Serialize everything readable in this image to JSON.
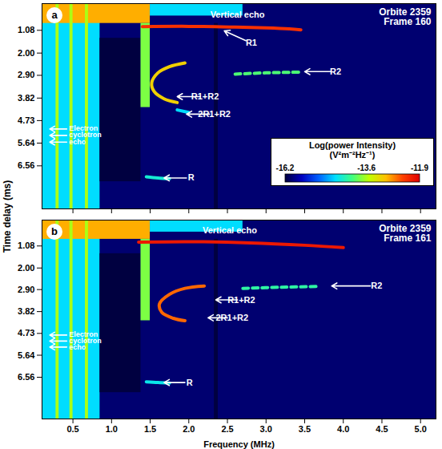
{
  "chart_data": {
    "type": "heatmap",
    "xlabel": "Frequency (MHz)",
    "ylabel": "Time delay (ms)",
    "xlim": [
      0.1,
      5.2
    ],
    "xticks": [
      0.5,
      {
        "value": 1,
        "label": "1.0"
      },
      1.5,
      {
        "value": 2,
        "label": "2.0"
      },
      2.5,
      {
        "value": 3,
        "label": "3.0"
      },
      3.5,
      {
        "value": 4,
        "label": "4.0"
      },
      4.5,
      {
        "value": 5,
        "label": "5.0"
      }
    ],
    "ylim": [
      0,
      8.3
    ],
    "yticks": [
      1.08,
      {
        "value": 2,
        "label": "2.00"
      },
      {
        "value": 2.9,
        "label": "2.90"
      },
      3.82,
      4.73,
      5.64,
      6.56
    ],
    "colorbar": {
      "label": "Log(power Intensity) (V²m⁻²Hz⁻¹)",
      "range": [
        -16.2,
        -11.9
      ],
      "ticks": [
        -16.2,
        -13.6,
        -11.9
      ]
    },
    "panels": [
      {
        "letter": "a",
        "orbit": "Orbite 2359",
        "frame": "Frame 160",
        "tick_labels": "y",
        "cells": [
          {
            "x": [
              0.1,
              5.2
            ],
            "y": [
              0,
              8.3
            ],
            "value": -16.0
          },
          {
            "x": [
              0.1,
              0.85
            ],
            "y": [
              0,
              8.3
            ],
            "value": -14.6
          },
          {
            "x": [
              0.1,
              1.5
            ],
            "y": [
              0,
              0.8
            ],
            "value": -12.9
          },
          {
            "x": [
              1.5,
              2.7
            ],
            "y": [
              0,
              0.5
            ],
            "value": -14.6
          },
          {
            "x": [
              0.85,
              1.38
            ],
            "y": [
              1.4,
              7.2
            ],
            "value": -16.2
          },
          {
            "x": [
              1.38,
              1.5
            ],
            "y": [
              0.8,
              4.2
            ],
            "value": -13.8
          },
          {
            "x": [
              0.28,
              0.32
            ],
            "y": [
              0,
              8.3
            ],
            "value": -13.6
          },
          {
            "x": [
              0.46,
              0.5
            ],
            "y": [
              0,
              8.3
            ],
            "value": -13.6
          },
          {
            "x": [
              0.66,
              0.7
            ],
            "y": [
              0,
              8.3
            ],
            "value": -13.6
          },
          {
            "x": [
              2.33,
              2.38
            ],
            "y": [
              0.8,
              8.3
            ],
            "value": -16.2
          }
        ],
        "traces": [
          {
            "x": [
              1.4,
              2.0,
              2.6,
              3.0,
              3.3,
              3.45
            ],
            "y": [
              0.93,
              0.92,
              0.95,
              0.98,
              1.02,
              1.06
            ],
            "value": -12.3
          },
          {
            "x": [
              2.6,
              3.0,
              3.45
            ],
            "y": [
              2.85,
              2.8,
              2.77
            ],
            "value": -14.0,
            "line_style": "dashed"
          },
          {
            "x": [
              1.95,
              1.75,
              1.6,
              1.52,
              1.55,
              1.68,
              1.85
            ],
            "y": [
              2.4,
              2.55,
              2.8,
              3.2,
              3.55,
              3.85,
              4.0
            ],
            "value": -13.1
          },
          {
            "x": [
              1.85,
              2.0
            ],
            "y": [
              4.3,
              4.4
            ],
            "value": -14.6
          },
          {
            "x": [
              1.45,
              1.6,
              1.75
            ],
            "y": [
              7.0,
              7.05,
              7.08
            ],
            "value": -14.4
          }
        ],
        "annotations": [
          {
            "text": "Vertical echo",
            "x": 2.63,
            "y": 0.44
          },
          {
            "text": "R1",
            "x": 2.81,
            "y": 1.6,
            "arrows": [
              [
                2.74,
                1.5,
                2.46,
                1.1
              ]
            ]
          },
          {
            "text": "R2",
            "x": 3.9,
            "y": 2.75,
            "arrows": [
              [
                3.84,
                2.75,
                3.5,
                2.75
              ]
            ]
          },
          {
            "text": "R1+R2",
            "x": 2.21,
            "y": 3.76,
            "arrows": [
              [
                2.15,
                3.76,
                1.85,
                3.76
              ]
            ]
          },
          {
            "text": "2R1+R2",
            "x": 2.33,
            "y": 4.47,
            "arrows": [
              [
                2.27,
                4.47,
                1.97,
                4.47
              ]
            ]
          },
          {
            "text": "R",
            "x": 2.03,
            "y": 7.05,
            "arrows": [
              [
                1.97,
                7.05,
                1.68,
                7.05
              ]
            ]
          },
          {
            "text": "Electron cyclotron echo",
            "x": 0.45,
            "y": 5.33,
            "arrows": [
              [
                0.42,
                5.07,
                0.2,
                5.07
              ],
              [
                0.42,
                5.33,
                0.2,
                5.33
              ],
              [
                0.42,
                5.6,
                0.2,
                5.6
              ]
            ]
          }
        ]
      },
      {
        "letter": "b",
        "orbit": "Orbite 2359",
        "frame": "Frame 161",
        "cells": [
          {
            "x": [
              0.1,
              5.2
            ],
            "y": [
              0,
              8.3
            ],
            "value": -16.0
          },
          {
            "x": [
              0.1,
              0.85
            ],
            "y": [
              0,
              8.3
            ],
            "value": -14.6
          },
          {
            "x": [
              0.1,
              1.5
            ],
            "y": [
              0,
              0.8
            ],
            "value": -12.9
          },
          {
            "x": [
              1.5,
              2.7
            ],
            "y": [
              0,
              0.5
            ],
            "value": -14.6
          },
          {
            "x": [
              0.85,
              1.38
            ],
            "y": [
              1.4,
              7.2
            ],
            "value": -16.2
          },
          {
            "x": [
              1.38,
              1.5
            ],
            "y": [
              0.8,
              4.2
            ],
            "value": -13.8
          },
          {
            "x": [
              0.28,
              0.32
            ],
            "y": [
              0,
              8.3
            ],
            "value": -13.6
          },
          {
            "x": [
              0.46,
              0.5
            ],
            "y": [
              0,
              8.3
            ],
            "value": -13.6
          },
          {
            "x": [
              0.66,
              0.7
            ],
            "y": [
              0,
              8.3
            ],
            "value": -13.6
          },
          {
            "x": [
              2.33,
              2.38
            ],
            "y": [
              0.8,
              8.3
            ],
            "value": -16.2
          }
        ],
        "traces": [
          {
            "x": [
              1.35,
              2.0,
              2.8,
              3.5,
              4.0
            ],
            "y": [
              0.92,
              0.9,
              0.95,
              1.05,
              1.15
            ],
            "value": -12.1
          },
          {
            "x": [
              2.7,
              3.2,
              3.65
            ],
            "y": [
              2.85,
              2.8,
              2.77
            ],
            "value": -14.2,
            "line_style": "dashed"
          },
          {
            "x": [
              2.2,
              1.95,
              1.75,
              1.62,
              1.65,
              1.8,
              1.95
            ],
            "y": [
              2.75,
              2.85,
              3.1,
              3.5,
              3.85,
              4.1,
              4.2
            ],
            "value": -12.6
          },
          {
            "x": [
              1.45,
              1.6,
              1.75
            ],
            "y": [
              6.75,
              6.78,
              6.8
            ],
            "value": -14.5
          }
        ],
        "annotations": [
          {
            "text": "Vertical echo",
            "x": 2.53,
            "y": 0.42
          },
          {
            "text": "R2",
            "x": 4.43,
            "y": 2.75,
            "arrows": [
              [
                4.35,
                2.75,
                3.85,
                2.75
              ]
            ]
          },
          {
            "text": "R1+R2",
            "x": 2.68,
            "y": 3.33,
            "arrows": [
              [
                2.63,
                3.33,
                2.35,
                3.33
              ]
            ]
          },
          {
            "text": "2R1+R2",
            "x": 2.56,
            "y": 4.08,
            "arrows": [
              [
                2.5,
                4.08,
                2.25,
                4.08
              ]
            ]
          },
          {
            "text": "R",
            "x": 2.01,
            "y": 6.78,
            "arrows": [
              [
                1.95,
                6.78,
                1.68,
                6.78
              ]
            ]
          },
          {
            "text": "Electron cyclotron echo",
            "x": 0.45,
            "y": 5.05,
            "arrows": [
              [
                0.42,
                4.8,
                0.2,
                4.8
              ],
              [
                0.42,
                5.05,
                0.2,
                5.05
              ],
              [
                0.42,
                5.3,
                0.2,
                5.3
              ]
            ]
          }
        ]
      }
    ]
  }
}
